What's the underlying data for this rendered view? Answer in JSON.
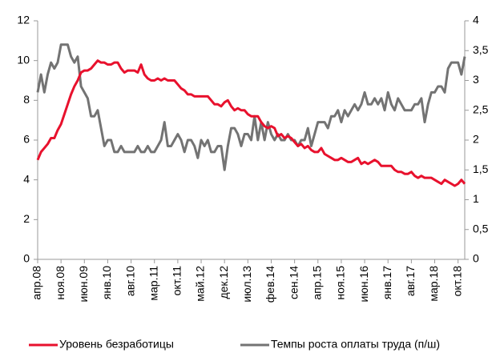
{
  "chart_data": {
    "type": "line",
    "categories": [
      "апр.08",
      null,
      null,
      null,
      null,
      null,
      null,
      "ноя.08",
      null,
      null,
      null,
      null,
      null,
      null,
      "июн.09",
      null,
      null,
      null,
      null,
      null,
      null,
      "янв.10",
      null,
      null,
      null,
      null,
      null,
      null,
      "авг.10",
      null,
      null,
      null,
      null,
      null,
      null,
      "мар.11",
      null,
      null,
      null,
      null,
      null,
      null,
      "окт.11",
      null,
      null,
      null,
      null,
      null,
      null,
      "май.12",
      null,
      null,
      null,
      null,
      null,
      null,
      "дек.12",
      null,
      null,
      null,
      null,
      null,
      null,
      "июл.13",
      null,
      null,
      null,
      null,
      null,
      null,
      "фев.14",
      null,
      null,
      null,
      null,
      null,
      null,
      "сен.14",
      null,
      null,
      null,
      null,
      null,
      null,
      "апр.15",
      null,
      null,
      null,
      null,
      null,
      null,
      "ноя.15",
      null,
      null,
      null,
      null,
      null,
      null,
      "июн.16",
      null,
      null,
      null,
      null,
      null,
      null,
      "янв.17",
      null,
      null,
      null,
      null,
      null,
      null,
      "авг.17",
      null,
      null,
      null,
      null,
      null,
      null,
      "мар.18",
      null,
      null,
      null,
      null,
      null,
      null,
      "окт.18",
      null,
      null
    ],
    "series": [
      {
        "name": "Уровень безработицы",
        "color": "#e8112d",
        "values": [
          5.0,
          5.4,
          5.6,
          5.8,
          6.1,
          6.1,
          6.5,
          6.8,
          7.3,
          7.8,
          8.3,
          8.7,
          9.0,
          9.4,
          9.5,
          9.5,
          9.6,
          9.8,
          10.0,
          9.9,
          9.9,
          9.8,
          9.8,
          9.9,
          9.9,
          9.6,
          9.4,
          9.5,
          9.5,
          9.5,
          9.4,
          9.8,
          9.3,
          9.1,
          9.0,
          9.0,
          9.1,
          9.0,
          9.1,
          9.0,
          9.0,
          9.0,
          8.8,
          8.6,
          8.5,
          8.3,
          8.3,
          8.2,
          8.2,
          8.2,
          8.2,
          8.2,
          8.0,
          7.8,
          7.8,
          7.7,
          7.9,
          8.0,
          7.7,
          7.5,
          7.6,
          7.5,
          7.5,
          7.3,
          7.2,
          7.2,
          7.2,
          6.9,
          6.7,
          6.6,
          6.7,
          6.6,
          6.2,
          6.3,
          6.1,
          6.2,
          6.1,
          5.9,
          5.7,
          5.8,
          5.6,
          5.7,
          5.5,
          5.4,
          5.4,
          5.6,
          5.3,
          5.2,
          5.1,
          5.0,
          5.0,
          5.1,
          5.0,
          4.9,
          4.9,
          5.0,
          5.1,
          4.8,
          4.9,
          4.8,
          4.9,
          5.0,
          4.9,
          4.7,
          4.7,
          4.7,
          4.7,
          4.5,
          4.4,
          4.4,
          4.3,
          4.3,
          4.4,
          4.2,
          4.1,
          4.2,
          4.1,
          4.1,
          4.1,
          4.0,
          3.9,
          3.8,
          4.0,
          3.9,
          3.8,
          3.7,
          3.8,
          4.0,
          3.8
        ]
      },
      {
        "name": "Темпы роста оплаты труда (п/ш)",
        "color": "#737373",
        "axis": "y2",
        "values": [
          2.8,
          3.1,
          2.8,
          3.1,
          3.3,
          3.2,
          3.3,
          3.6,
          3.6,
          3.6,
          3.4,
          3.3,
          3.4,
          2.9,
          2.8,
          2.7,
          2.4,
          2.4,
          2.5,
          2.2,
          1.9,
          2.0,
          2.0,
          1.8,
          1.8,
          1.9,
          1.8,
          1.8,
          1.8,
          1.8,
          1.9,
          1.8,
          1.8,
          1.9,
          1.8,
          1.8,
          1.9,
          2.0,
          2.3,
          1.9,
          1.9,
          2.0,
          2.1,
          2.0,
          1.8,
          2.0,
          2.0,
          1.9,
          1.7,
          2.0,
          1.9,
          2.0,
          1.8,
          1.8,
          1.9,
          1.9,
          1.5,
          1.9,
          2.2,
          2.2,
          2.1,
          1.9,
          2.1,
          2.1,
          2.0,
          2.4,
          2.0,
          2.3,
          2.0,
          2.3,
          2.1,
          2.0,
          2.1,
          2.0,
          2.0,
          2.1,
          2.0,
          2.0,
          1.9,
          2.0,
          2.0,
          2.2,
          1.9,
          2.1,
          2.3,
          2.3,
          2.3,
          2.2,
          2.4,
          2.4,
          2.5,
          2.3,
          2.5,
          2.4,
          2.5,
          2.6,
          2.5,
          2.6,
          2.8,
          2.6,
          2.6,
          2.7,
          2.6,
          2.7,
          2.5,
          2.8,
          2.6,
          2.5,
          2.7,
          2.6,
          2.5,
          2.5,
          2.5,
          2.6,
          2.6,
          2.7,
          2.3,
          2.6,
          2.8,
          2.8,
          2.9,
          2.9,
          2.8,
          3.2,
          3.3,
          3.3,
          3.3,
          3.1,
          3.4
        ]
      }
    ],
    "ylim": [
      0,
      12
    ],
    "yticks": [
      0,
      2,
      4,
      6,
      8,
      10,
      12
    ],
    "y2lim": [
      0,
      4
    ],
    "y2ticks": [
      0,
      {
        "value": 0.5,
        "label": "0,5"
      },
      1,
      {
        "value": 1.5,
        "label": "1,5"
      },
      2,
      {
        "value": 2.5,
        "label": "2,5"
      },
      3,
      {
        "value": 3.5,
        "label": "3,5"
      },
      4
    ],
    "grid": false,
    "legend": "bottom"
  }
}
